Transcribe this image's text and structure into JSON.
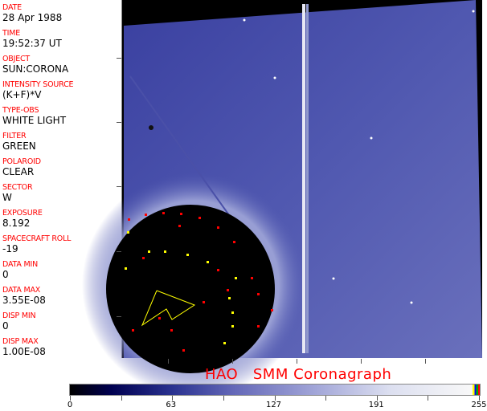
{
  "metadata": [
    {
      "label": "DATE",
      "value": "28 Apr 1988"
    },
    {
      "label": "TIME",
      "value": "19:52:37 UT"
    },
    {
      "label": "OBJECT",
      "value": "SUN:CORONA"
    },
    {
      "label": "INTENSITY SOURCE",
      "value": "(K+F)*V"
    },
    {
      "label": "TYPE-OBS",
      "value": "WHITE LIGHT"
    },
    {
      "label": "FILTER",
      "value": "GREEN"
    },
    {
      "label": "POLAROID",
      "value": "CLEAR"
    },
    {
      "label": "SECTOR",
      "value": "W"
    },
    {
      "label": "EXPOSURE",
      "value": "8.192"
    },
    {
      "label": "SPACECRAFT ROLL",
      "value": "-19"
    },
    {
      "label": "DATA MIN",
      "value": "0"
    },
    {
      "label": "DATA MAX",
      "value": "3.55E-08"
    },
    {
      "label": "DISP MIN",
      "value": "0"
    },
    {
      "label": "DISP MAX",
      "value": "1.00E-08"
    }
  ],
  "title": "HAO   SMM Coronagraph",
  "colorbar": {
    "ticks": [
      "0",
      "63",
      "127",
      "191",
      "255"
    ],
    "min": 0,
    "max": 255,
    "end_colors": [
      "#ffff00",
      "#0000ff",
      "#00aa00",
      "#ff0000"
    ]
  }
}
